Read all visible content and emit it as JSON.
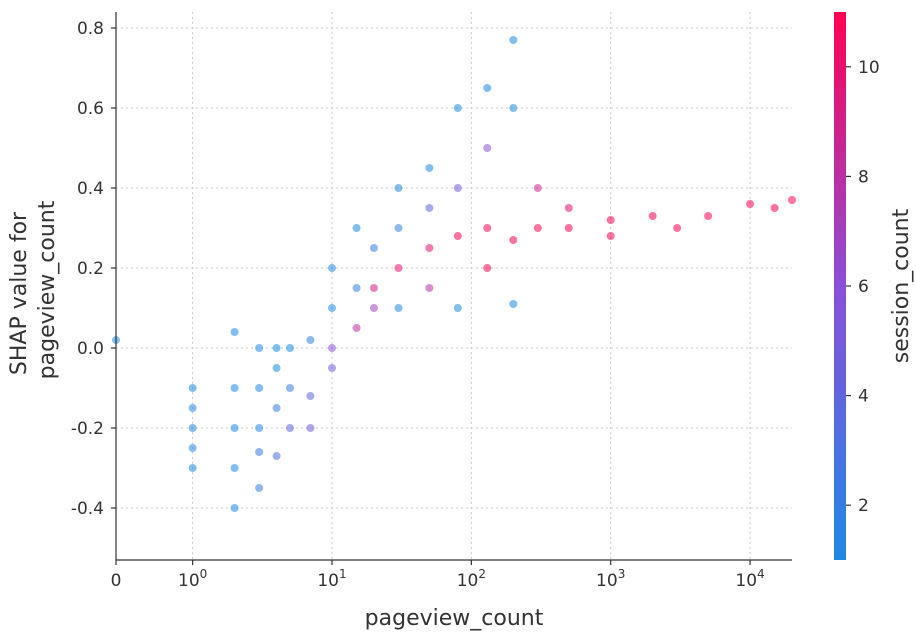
{
  "chart_data": {
    "type": "scatter",
    "title": "",
    "xlabel": "pageview_count",
    "ylabel_lines": [
      "SHAP value for",
      "pageview_count"
    ],
    "x_scale": "symlog",
    "xlim": [
      0,
      20000
    ],
    "ylim": [
      -0.53,
      0.84
    ],
    "x_ticks": [
      {
        "value": 0,
        "base": "0",
        "exp": ""
      },
      {
        "value": 1,
        "base": "10",
        "exp": "0"
      },
      {
        "value": 10,
        "base": "10",
        "exp": "1"
      },
      {
        "value": 100,
        "base": "10",
        "exp": "2"
      },
      {
        "value": 1000,
        "base": "10",
        "exp": "3"
      },
      {
        "value": 10000,
        "base": "10",
        "exp": "4"
      }
    ],
    "y_ticks": [
      "-0.4",
      "-0.2",
      "0.0",
      "0.2",
      "0.4",
      "0.6",
      "0.8"
    ],
    "grid": true,
    "colorbar": {
      "label": "session_count",
      "range": [
        1,
        11
      ],
      "ticks": [
        "2",
        "4",
        "6",
        "8",
        "10"
      ],
      "color_low": "#1e88e5",
      "color_mid": "#8a4fd8",
      "color_high": "#ff0052"
    },
    "series": [
      {
        "points": [
          [
            0,
            0.02,
            1
          ],
          [
            1,
            -0.2,
            1
          ],
          [
            1,
            -0.15,
            1
          ],
          [
            1,
            -0.25,
            1
          ],
          [
            1,
            -0.1,
            1
          ],
          [
            1,
            -0.3,
            1
          ],
          [
            2,
            -0.1,
            1
          ],
          [
            2,
            -0.2,
            1
          ],
          [
            2,
            -0.4,
            1
          ],
          [
            2,
            -0.3,
            1
          ],
          [
            2,
            0.04,
            1
          ],
          [
            3,
            -0.1,
            1
          ],
          [
            3,
            -0.2,
            1
          ],
          [
            3,
            -0.35,
            2
          ],
          [
            3,
            0.0,
            1
          ],
          [
            3,
            -0.26,
            2
          ],
          [
            4,
            -0.15,
            2
          ],
          [
            4,
            -0.05,
            1
          ],
          [
            4,
            -0.27,
            3
          ],
          [
            4,
            0.0,
            1
          ],
          [
            5,
            -0.1,
            2
          ],
          [
            5,
            -0.2,
            4
          ],
          [
            5,
            0.0,
            1
          ],
          [
            7,
            -0.12,
            4
          ],
          [
            7,
            0.02,
            2
          ],
          [
            7,
            -0.2,
            5
          ],
          [
            10,
            0.1,
            1
          ],
          [
            10,
            0.2,
            1
          ],
          [
            10,
            -0.05,
            5
          ],
          [
            10,
            0.0,
            6
          ],
          [
            15,
            0.15,
            2
          ],
          [
            15,
            0.3,
            1
          ],
          [
            15,
            0.05,
            8
          ],
          [
            20,
            0.25,
            2
          ],
          [
            20,
            0.15,
            9
          ],
          [
            20,
            0.1,
            7
          ],
          [
            30,
            0.3,
            2
          ],
          [
            30,
            0.2,
            10
          ],
          [
            30,
            0.4,
            1
          ],
          [
            30,
            0.1,
            1
          ],
          [
            50,
            0.45,
            1
          ],
          [
            50,
            0.25,
            10
          ],
          [
            50,
            0.35,
            4
          ],
          [
            50,
            0.15,
            8
          ],
          [
            80,
            0.6,
            1
          ],
          [
            80,
            0.28,
            11
          ],
          [
            80,
            0.4,
            5
          ],
          [
            80,
            0.1,
            1
          ],
          [
            130,
            0.65,
            1
          ],
          [
            130,
            0.3,
            11
          ],
          [
            130,
            0.5,
            6
          ],
          [
            130,
            0.2,
            11
          ],
          [
            200,
            0.77,
            1
          ],
          [
            200,
            0.27,
            11
          ],
          [
            200,
            0.6,
            1
          ],
          [
            200,
            0.11,
            1
          ],
          [
            300,
            0.3,
            11
          ],
          [
            300,
            0.4,
            9
          ],
          [
            500,
            0.3,
            11
          ],
          [
            500,
            0.35,
            10
          ],
          [
            1000,
            0.32,
            11
          ],
          [
            1000,
            0.28,
            11
          ],
          [
            2000,
            0.33,
            11
          ],
          [
            3000,
            0.3,
            11
          ],
          [
            5000,
            0.33,
            11
          ],
          [
            10000,
            0.36,
            11
          ],
          [
            15000,
            0.35,
            11
          ],
          [
            20000,
            0.37,
            11
          ]
        ]
      }
    ]
  }
}
